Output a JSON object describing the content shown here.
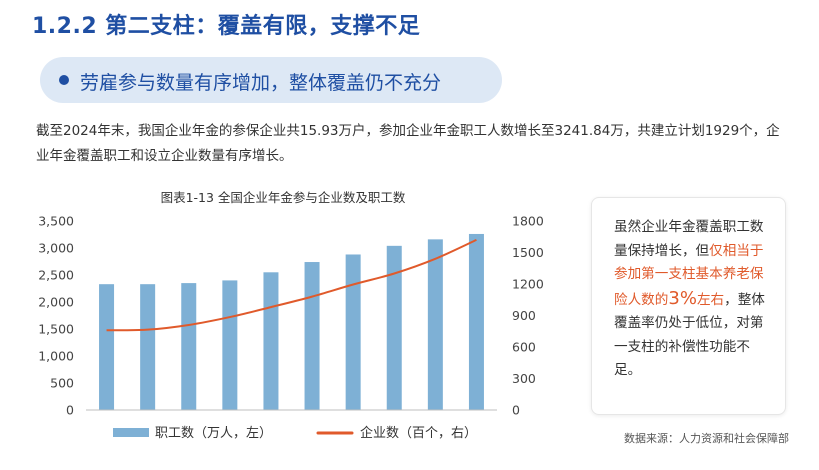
{
  "heading": "1.2.2 第二支柱：覆盖有限，支撑不足",
  "subheading": "劳雇参与数量有序增加，整体覆盖仍不充分",
  "paragraph": "截至2024年末，我国企业年金的参保企业共15.93万户，参加企业年金职工人数增长至3241.84万，共建立计划1929个，企业年金覆盖职工和设立企业数量有序增长。",
  "note": {
    "part1": "虽然企业年金覆盖职工数量保持增长，但",
    "highlight1": "仅相当于参加第一支柱基本养老保险人数的",
    "highlight_big": "3%",
    "highlight2": "左右",
    "part2": "，整体覆盖率仍处于低位，对第一支柱的补偿性功能不足。"
  },
  "source": "数据来源：人力资源和社会保障部",
  "colors": {
    "bar": "#7eb0d5",
    "line": "#e05a2b",
    "accent": "#1f4fa3"
  },
  "chart_data": {
    "type": "bar",
    "title": "图表1-13 全国企业年金参与企业数及职工数",
    "categories": [
      "",
      "",
      "",
      "",
      "",
      "",
      "",
      "",
      "",
      ""
    ],
    "series": [
      {
        "name": "职工数（万人，左）",
        "type": "bar",
        "axis": "left",
        "values": [
          2330,
          2330,
          2350,
          2400,
          2550,
          2740,
          2880,
          3040,
          3160,
          3260
        ]
      },
      {
        "name": "企业数（百个，右）",
        "type": "line",
        "axis": "right",
        "values": [
          760,
          765,
          810,
          885,
          980,
          1080,
          1195,
          1300,
          1440,
          1620
        ]
      }
    ],
    "y_left": {
      "min": 0,
      "max": 3500,
      "ticks": [
        0,
        500,
        1000,
        1500,
        2000,
        2500,
        3000,
        3500
      ],
      "labels": [
        "0",
        "500",
        "1,000",
        "1,500",
        "2,000",
        "2,500",
        "3,000",
        "3,500"
      ]
    },
    "y_right": {
      "min": 0,
      "max": 1800,
      "ticks": [
        0,
        300,
        600,
        900,
        1200,
        1500,
        1800
      ],
      "labels": [
        "0",
        "300",
        "600",
        "900",
        "1200",
        "1500",
        "1800"
      ]
    },
    "grid": false,
    "legend": "bottom"
  }
}
